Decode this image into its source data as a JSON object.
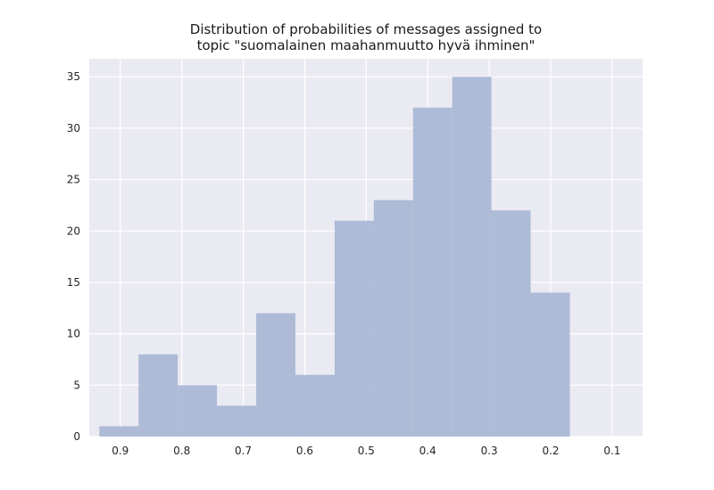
{
  "chart_data": {
    "type": "bar",
    "title_lines": [
      "Distribution of probabilities of messages assigned to",
      "topic \"suomalainen maahanmuutto hyvä ihminen\""
    ],
    "xlabel": "",
    "ylabel": "",
    "x_axis_inverted": true,
    "xlim": [
      0.9505,
      0.0505
    ],
    "ylim": [
      0,
      36.75
    ],
    "xticks": [
      0.9,
      0.8,
      0.7,
      0.6,
      0.5,
      0.4,
      0.3,
      0.2,
      0.1
    ],
    "xtick_labels": [
      "0.9",
      "0.8",
      "0.7",
      "0.6",
      "0.5",
      "0.4",
      "0.3",
      "0.2",
      "0.1"
    ],
    "yticks": [
      0,
      5,
      10,
      15,
      20,
      25,
      30,
      35
    ],
    "ytick_labels": [
      "0",
      "5",
      "10",
      "15",
      "20",
      "25",
      "30",
      "35"
    ],
    "bins": [
      {
        "x_start": 0.9341,
        "x_end": 0.8703,
        "count": 1
      },
      {
        "x_start": 0.8703,
        "x_end": 0.8065,
        "count": 8
      },
      {
        "x_start": 0.8065,
        "x_end": 0.7428,
        "count": 5
      },
      {
        "x_start": 0.7428,
        "x_end": 0.679,
        "count": 3
      },
      {
        "x_start": 0.679,
        "x_end": 0.6152,
        "count": 12
      },
      {
        "x_start": 0.6152,
        "x_end": 0.5514,
        "count": 6
      },
      {
        "x_start": 0.5514,
        "x_end": 0.4877,
        "count": 21
      },
      {
        "x_start": 0.4877,
        "x_end": 0.4239,
        "count": 23
      },
      {
        "x_start": 0.4239,
        "x_end": 0.3601,
        "count": 32
      },
      {
        "x_start": 0.3601,
        "x_end": 0.2964,
        "count": 35
      },
      {
        "x_start": 0.2964,
        "x_end": 0.2326,
        "count": 22
      },
      {
        "x_start": 0.2326,
        "x_end": 0.1688,
        "count": 14
      }
    ],
    "grid": true,
    "colors": {
      "bar": "#a8b6d5",
      "plot_background": "#eaeaf2",
      "grid": "#ffffff",
      "text": "#262626"
    }
  }
}
